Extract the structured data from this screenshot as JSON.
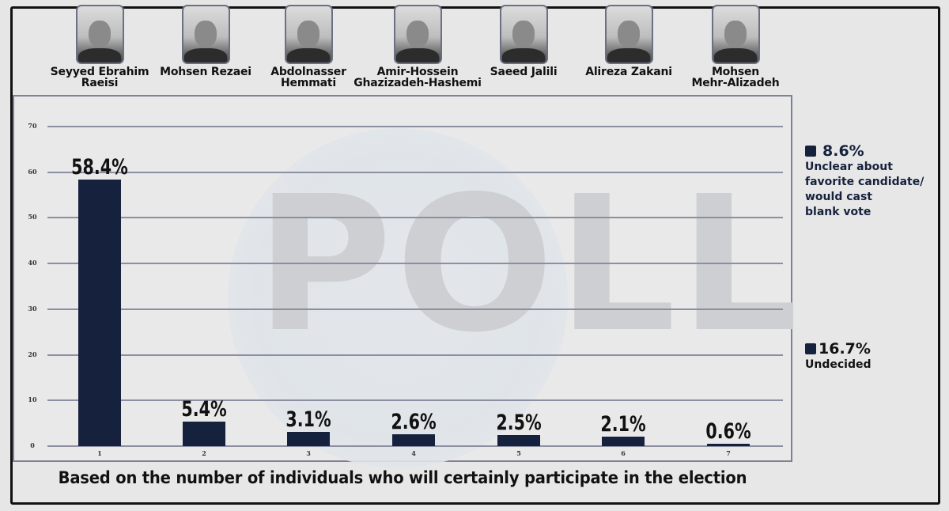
{
  "candidates": [
    {
      "name": "Seyyed Ebrahim\nRaeisi",
      "photo_icon": "portrait-photo"
    },
    {
      "name": "Mohsen Rezaei",
      "photo_icon": "portrait-photo"
    },
    {
      "name": "Abdolnasser\nHemmati",
      "photo_icon": "portrait-photo"
    },
    {
      "name": "Amir-Hossein\nGhazizadeh-Hashemi",
      "photo_icon": "portrait-photo"
    },
    {
      "name": "Saeed Jalili",
      "photo_icon": "portrait-photo"
    },
    {
      "name": "Alireza Zakani",
      "photo_icon": "portrait-photo"
    },
    {
      "name": "Mohsen\nMehr-Alizadeh",
      "photo_icon": "portrait-photo"
    }
  ],
  "watermark": "POLL",
  "caption": "Based on the number of individuals who will certainly participate in the election",
  "legend": [
    {
      "value": "8.6%",
      "text": "Unclear about\nfavorite candidate/\nwould cast\nblank vote"
    },
    {
      "value": "16.7%",
      "text": "Undecided"
    }
  ],
  "colors": {
    "bar": "#16213d",
    "grid": "#8b8fa1",
    "background": "#e6e6e6"
  },
  "chart_data": {
    "type": "bar",
    "title": "",
    "categories": [
      "1",
      "2",
      "3",
      "4",
      "5",
      "6",
      "7"
    ],
    "category_names": [
      "Seyyed Ebrahim Raeisi",
      "Mohsen Rezaei",
      "Abdolnasser Hemmati",
      "Amir-Hossein Ghazizadeh-Hashemi",
      "Saeed Jalili",
      "Alireza Zakani",
      "Mohsen Mehr-Alizadeh"
    ],
    "values": [
      58.4,
      5.4,
      3.1,
      2.6,
      2.5,
      2.1,
      0.6
    ],
    "value_labels": [
      "58.4%",
      "5.4%",
      "3.1%",
      "2.6%",
      "2.5%",
      "2.1%",
      "0.6%"
    ],
    "yticks": [
      "0",
      "10",
      "20",
      "30",
      "40",
      "50",
      "60",
      "70"
    ],
    "ylim": [
      0,
      70
    ],
    "xlabel": "Based on the number of individuals who will certainly participate in the election",
    "ylabel": "",
    "grid": true,
    "extra_legend": [
      {
        "label": "Unclear about favorite candidate/would cast blank vote",
        "value": 8.6
      },
      {
        "label": "Undecided",
        "value": 16.7
      }
    ]
  }
}
